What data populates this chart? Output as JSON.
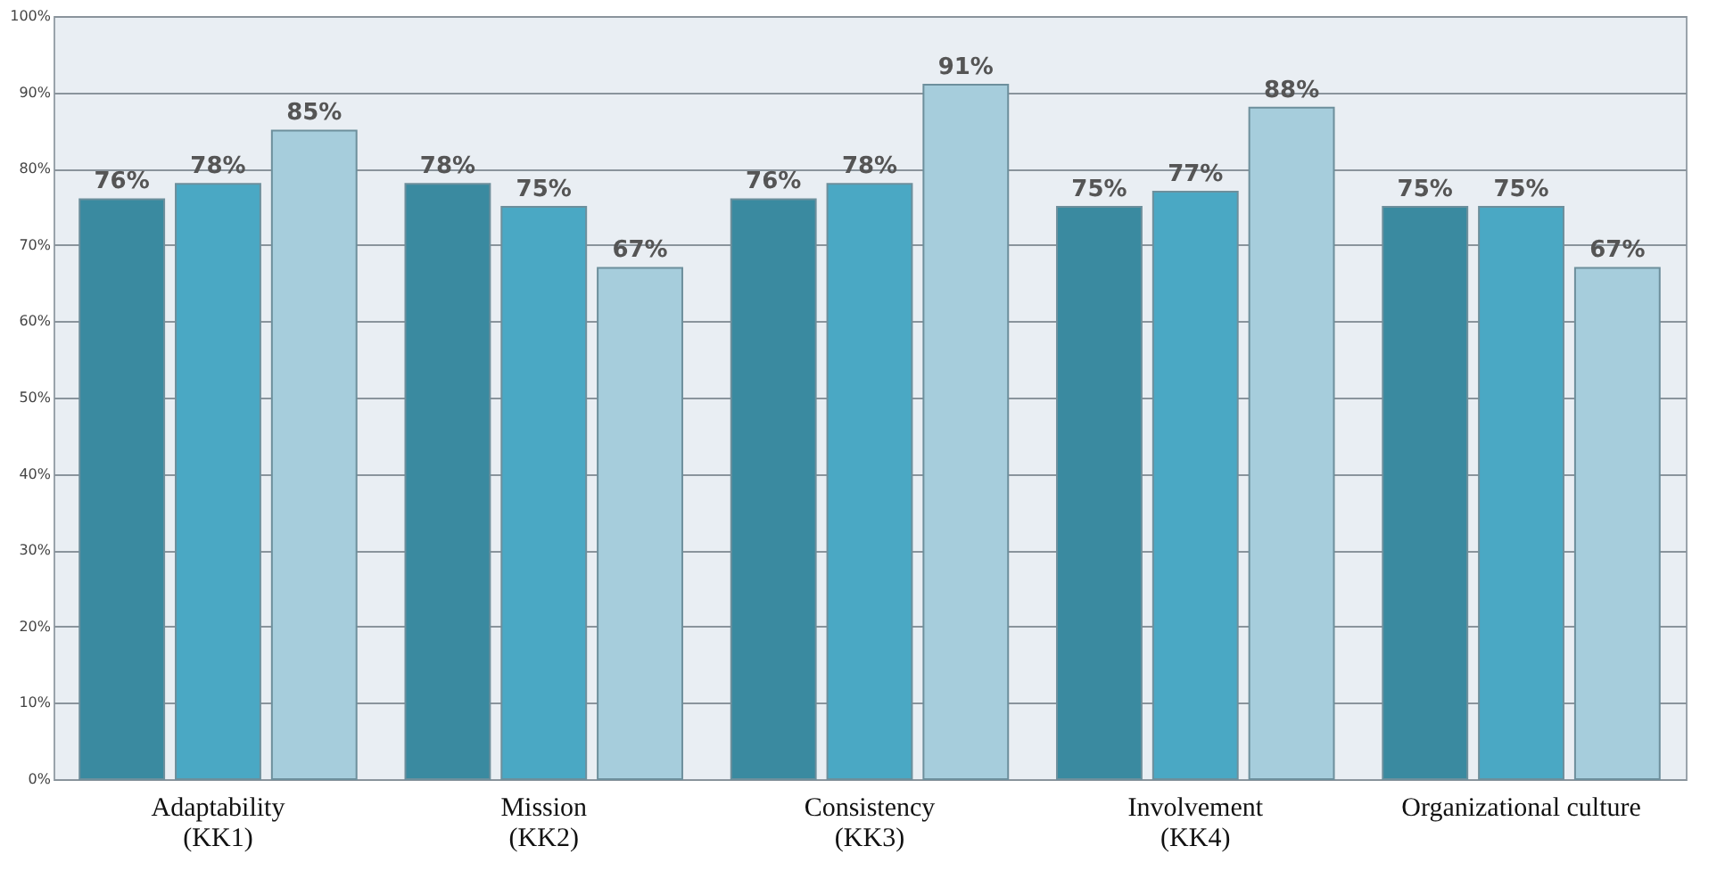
{
  "chart_data": {
    "type": "bar",
    "categories": [
      "Adaptability\n(KK1)",
      "Mission\n(KK2)",
      "Consistency\n(KK3)",
      "Involvement\n(KK4)",
      "Organizational culture"
    ],
    "series": [
      {
        "color": "#3a8aa0",
        "values": [
          76,
          78,
          76,
          75,
          75
        ],
        "value_labels": [
          "76%",
          "78%",
          "76%",
          "75%",
          "75%"
        ]
      },
      {
        "color": "#4aa8c4",
        "values": [
          78,
          75,
          78,
          77,
          75
        ],
        "value_labels": [
          "78%",
          "75%",
          "78%",
          "77%",
          "75%"
        ]
      },
      {
        "color": "#a6cddc",
        "values": [
          85,
          67,
          91,
          88,
          67
        ],
        "value_labels": [
          "85%",
          "67%",
          "91%",
          "88%",
          "67%"
        ]
      }
    ],
    "ylim": [
      0,
      100
    ],
    "yticks": [
      {
        "value": 0,
        "label": "0%"
      },
      {
        "value": 10,
        "label": "10%"
      },
      {
        "value": 20,
        "label": "20%"
      },
      {
        "value": 30,
        "label": "30%"
      },
      {
        "value": 40,
        "label": "40%"
      },
      {
        "value": 50,
        "label": "50%"
      },
      {
        "value": 60,
        "label": "60%"
      },
      {
        "value": 70,
        "label": "70%"
      },
      {
        "value": 80,
        "label": "80%"
      },
      {
        "value": 90,
        "label": "90%"
      },
      {
        "value": 100,
        "label": "100%"
      }
    ],
    "grid": "y",
    "legend": false
  }
}
